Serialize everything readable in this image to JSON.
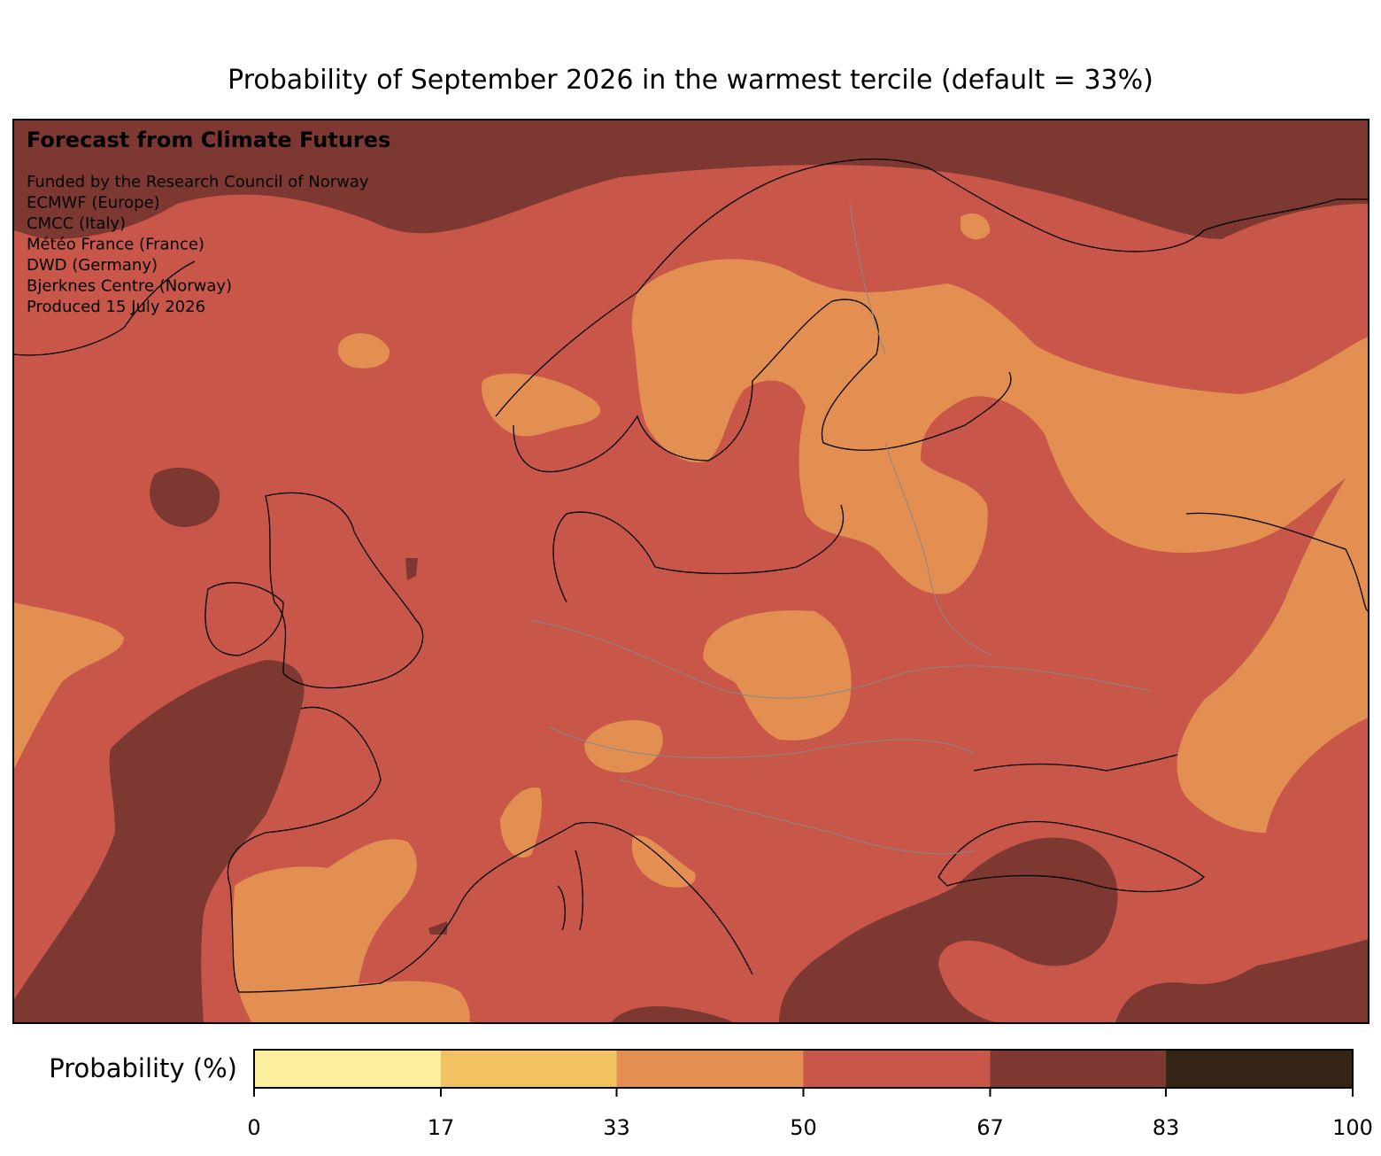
{
  "title": "Probability of September 2026 in the warmest tercile (default = 33%)",
  "map": {
    "heading": "Forecast from Climate Futures",
    "credits": [
      "Funded by the Research Council of Norway",
      "ECMWF (Europe)",
      "CMCC (Italy)",
      "Météo France (France)",
      "DWD (Germany)",
      "Bjerknes Centre (Norway)",
      "Produced 15 July 2026"
    ]
  },
  "colorbar": {
    "label": "Probability (%)",
    "lim": [
      0,
      100
    ],
    "ticks": [
      0,
      17,
      33,
      50,
      67,
      83,
      100
    ],
    "colors": [
      "#fcefa0",
      "#f2c261",
      "#e38f51",
      "#c8574a",
      "#7d3832",
      "#352516"
    ]
  }
}
